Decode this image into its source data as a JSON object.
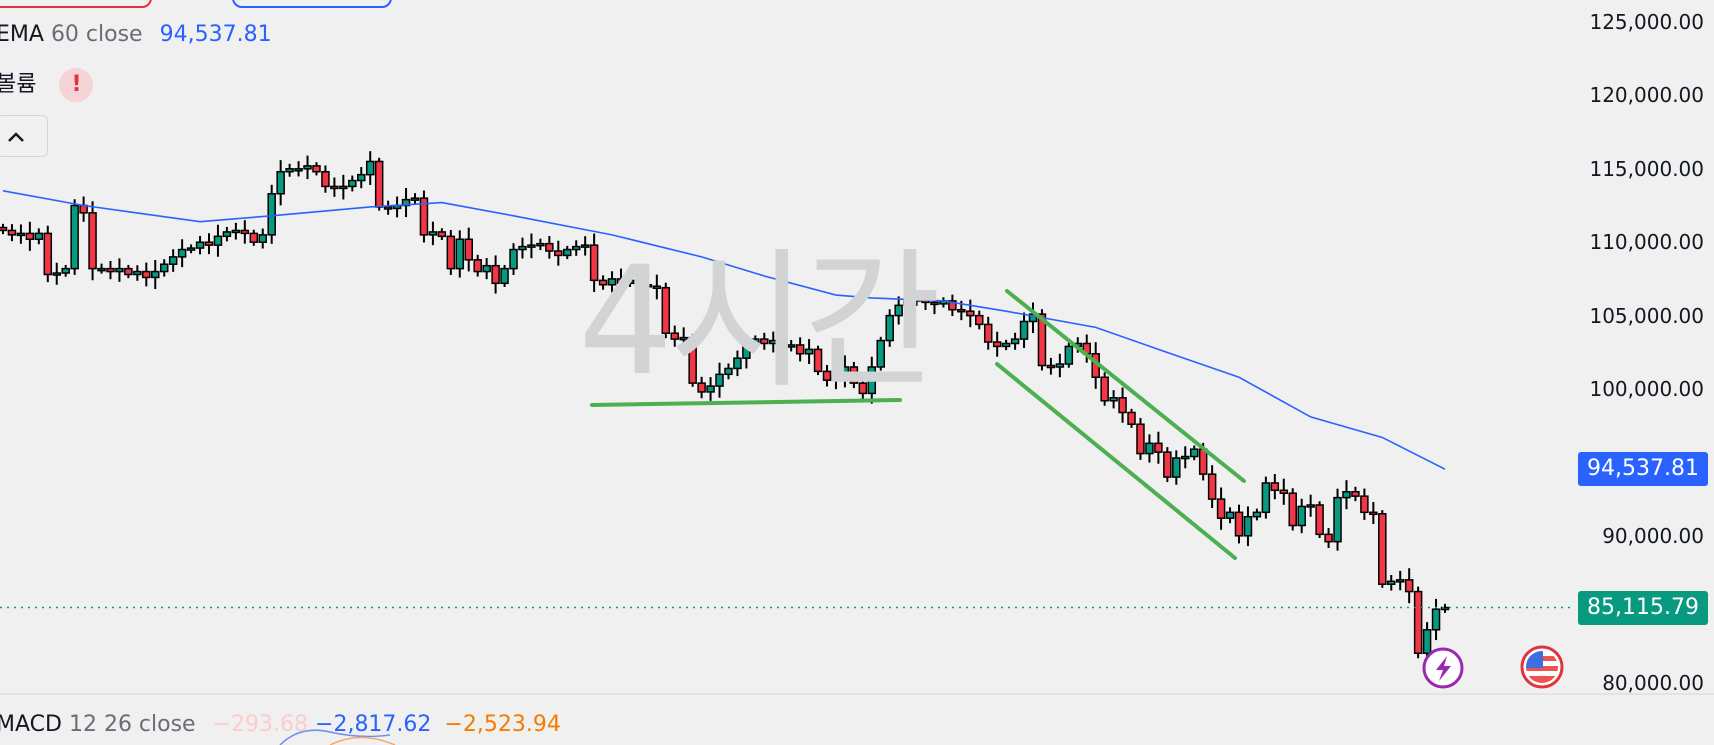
{
  "legend": {
    "ema": {
      "name": "EMA",
      "params": "60 close",
      "value": "94,537.81",
      "color": "#2962ff"
    },
    "volume": {
      "name": "볼륨",
      "warning": "!"
    },
    "macd": {
      "name": "MACD",
      "params": "12 26 close",
      "histogram": "−293.68",
      "macd": "−2,817.62",
      "signal": "−2,523.94"
    }
  },
  "watermark": "4시간",
  "price_axis": {
    "labels": [
      "125,000.00",
      "120,000.00",
      "115,000.00",
      "110,000.00",
      "105,000.00",
      "100,000.00",
      "90,000.00",
      "80,000.00"
    ],
    "ema_tag": "94,537.81",
    "last_price_tag": "85,115.79"
  },
  "icons": {
    "collapse": "chevron-up-icon",
    "event1": "lightning-icon",
    "event2": "us-flag-icon"
  },
  "colors": {
    "up": "#089981",
    "down": "#f23645",
    "ema": "#2962ff",
    "trendline": "#4caf50",
    "background": "#f0f0f0"
  },
  "chart_data": {
    "type": "candlestick",
    "timeframe": "4시간",
    "ylim": [
      80000,
      125000
    ],
    "closes": [
      110800,
      110500,
      110600,
      110200,
      110600,
      107800,
      107900,
      108200,
      112500,
      112000,
      108200,
      108200,
      108000,
      108200,
      107800,
      108000,
      107600,
      108000,
      108500,
      109000,
      109500,
      109600,
      110000,
      109800,
      110400,
      110700,
      110800,
      110600,
      110000,
      110500,
      113300,
      114800,
      115000,
      115000,
      115200,
      114800,
      113800,
      113700,
      113800,
      114200,
      114600,
      115500,
      112400,
      112300,
      112500,
      112900,
      113000,
      110500,
      110700,
      110400,
      108200,
      110200,
      108800,
      108000,
      108400,
      107200,
      108200,
      109500,
      109700,
      109800,
      109900,
      109400,
      109100,
      109500,
      109700,
      109800,
      107400,
      107100,
      107500,
      107200,
      107400,
      107100,
      107000,
      106900,
      103800,
      103400,
      103500,
      100400,
      99800,
      100200,
      101000,
      101400,
      102100,
      103000,
      103400,
      103100,
      103300,
      102900,
      103000,
      102400,
      102700,
      101200,
      100600,
      100900,
      101500,
      100400,
      99700,
      101500,
      103300,
      105000,
      105700,
      106000,
      106200,
      105900,
      105800,
      106000,
      105400,
      105300,
      105000,
      104400,
      103200,
      102900,
      103100,
      103400,
      104600,
      105100,
      101600,
      101500,
      101700,
      102900,
      103100,
      102400,
      100800,
      99200,
      99400,
      98400,
      97600,
      95600,
      96300,
      95700,
      94000,
      95300,
      95400,
      95900,
      94200,
      92500,
      91200,
      91600,
      90000,
      91300,
      91600,
      93600,
      93100,
      92900,
      90700,
      92000,
      92100,
      90100,
      89600,
      92600,
      93000,
      92700,
      91600,
      91500,
      86700,
      86900,
      87000,
      86200,
      82000,
      83600,
      85000,
      85115.79
    ],
    "ema60": [
      [
        0,
        113500
      ],
      [
        9,
        112500
      ],
      [
        22,
        111400
      ],
      [
        30,
        111800
      ],
      [
        41,
        112400
      ],
      [
        49,
        112700
      ],
      [
        57,
        111800
      ],
      [
        68,
        110500
      ],
      [
        78,
        109000
      ],
      [
        85,
        107700
      ],
      [
        93,
        106400
      ],
      [
        97,
        106200
      ],
      [
        105,
        106000
      ],
      [
        112,
        105300
      ],
      [
        122,
        104200
      ],
      [
        129,
        102700
      ],
      [
        138,
        100800
      ],
      [
        146,
        98100
      ],
      [
        154,
        96700
      ],
      [
        161,
        94537.81
      ]
    ],
    "last_price": 85115.79
  }
}
